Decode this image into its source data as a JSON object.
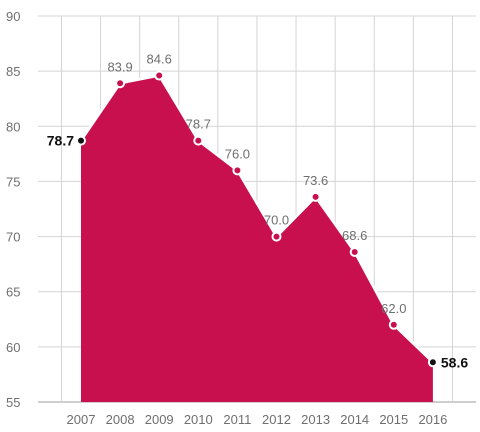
{
  "chart_data": {
    "type": "area",
    "title": "",
    "xlabel": "",
    "ylabel": "",
    "x": [
      "2007",
      "2008",
      "2009",
      "2010",
      "2011",
      "2012",
      "2013",
      "2014",
      "2015",
      "2016"
    ],
    "series": [
      {
        "values": [
          78.7,
          83.9,
          84.6,
          78.7,
          76.0,
          70.0,
          73.6,
          68.6,
          62.0,
          58.6
        ],
        "labels": [
          "78.7",
          "83.9",
          "84.6",
          "78.7",
          "76.0",
          "70.0",
          "73.6",
          "68.6",
          "62.0",
          "58.6"
        ],
        "highlighted": [
          true,
          false,
          false,
          false,
          false,
          false,
          false,
          false,
          false,
          true
        ]
      }
    ],
    "ylim": [
      55,
      90
    ],
    "yticks": [
      "55",
      "60",
      "65",
      "70",
      "75",
      "80",
      "85",
      "90"
    ],
    "grid": true,
    "legend": "none",
    "colors": {
      "fill": "#c8104e",
      "line": "#ffffff",
      "grid": "#d4d4d4",
      "axis": "#b0b0b0",
      "endpoint": "#111111"
    }
  }
}
